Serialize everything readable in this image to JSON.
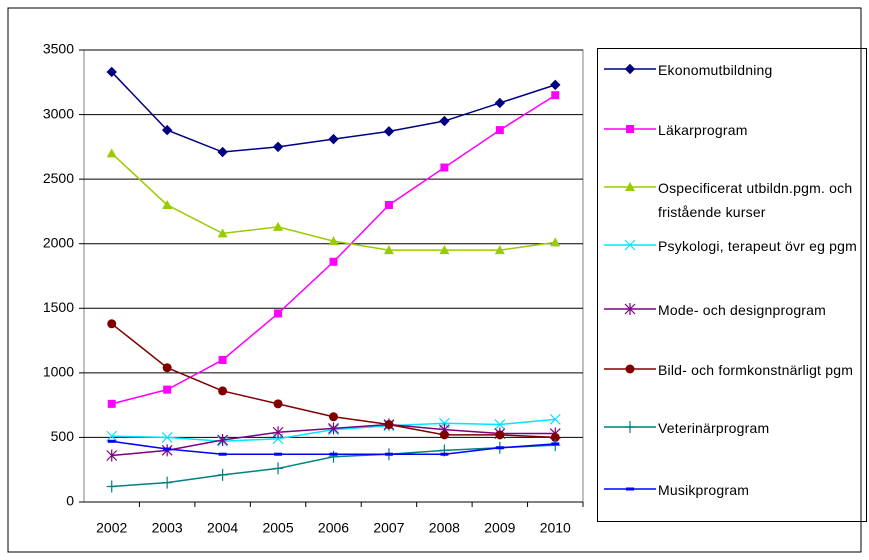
{
  "chart_data": {
    "type": "line",
    "categories": [
      "2002",
      "2003",
      "2004",
      "2005",
      "2006",
      "2007",
      "2008",
      "2009",
      "2010"
    ],
    "ylim": [
      0,
      3500
    ],
    "yticks": [
      0,
      500,
      1000,
      1500,
      2000,
      2500,
      3000,
      3500
    ],
    "grid": true,
    "legend": "right",
    "series": [
      {
        "name": "Ekonomutbildning",
        "color": "#000080",
        "marker": "diamond",
        "values": [
          3330,
          2880,
          2710,
          2750,
          2810,
          2870,
          2950,
          3090,
          3230
        ]
      },
      {
        "name": "Läkarprogram",
        "color": "#ff00ff",
        "marker": "square",
        "values": [
          760,
          870,
          1100,
          1460,
          1860,
          2300,
          2590,
          2880,
          3150
        ]
      },
      {
        "name": "Ospecificerat utbildn.pgm. och fristående kurser",
        "color": "#99cc00",
        "marker": "triangle",
        "values": [
          2700,
          2300,
          2080,
          2130,
          2020,
          1950,
          1950,
          1950,
          2010
        ]
      },
      {
        "name": "Psykologi, terapeut övr eg pgm",
        "color": "#00e5ff",
        "marker": "x",
        "values": [
          510,
          500,
          470,
          490,
          560,
          590,
          610,
          600,
          640
        ]
      },
      {
        "name": "Mode- och designprogram",
        "color": "#800080",
        "marker": "star",
        "values": [
          360,
          400,
          480,
          540,
          570,
          600,
          560,
          530,
          530
        ]
      },
      {
        "name": "Bild- och formkonstnärligt pgm",
        "color": "#800000",
        "marker": "circle",
        "values": [
          1380,
          1040,
          860,
          760,
          660,
          600,
          520,
          520,
          500
        ]
      },
      {
        "name": "Veterinärprogram",
        "color": "#008080",
        "marker": "plus",
        "values": [
          120,
          150,
          210,
          260,
          350,
          370,
          400,
          420,
          440
        ]
      },
      {
        "name": "Musikprogram",
        "color": "#0000ff",
        "marker": "dash",
        "values": [
          470,
          410,
          370,
          370,
          370,
          370,
          370,
          420,
          450
        ]
      }
    ]
  }
}
